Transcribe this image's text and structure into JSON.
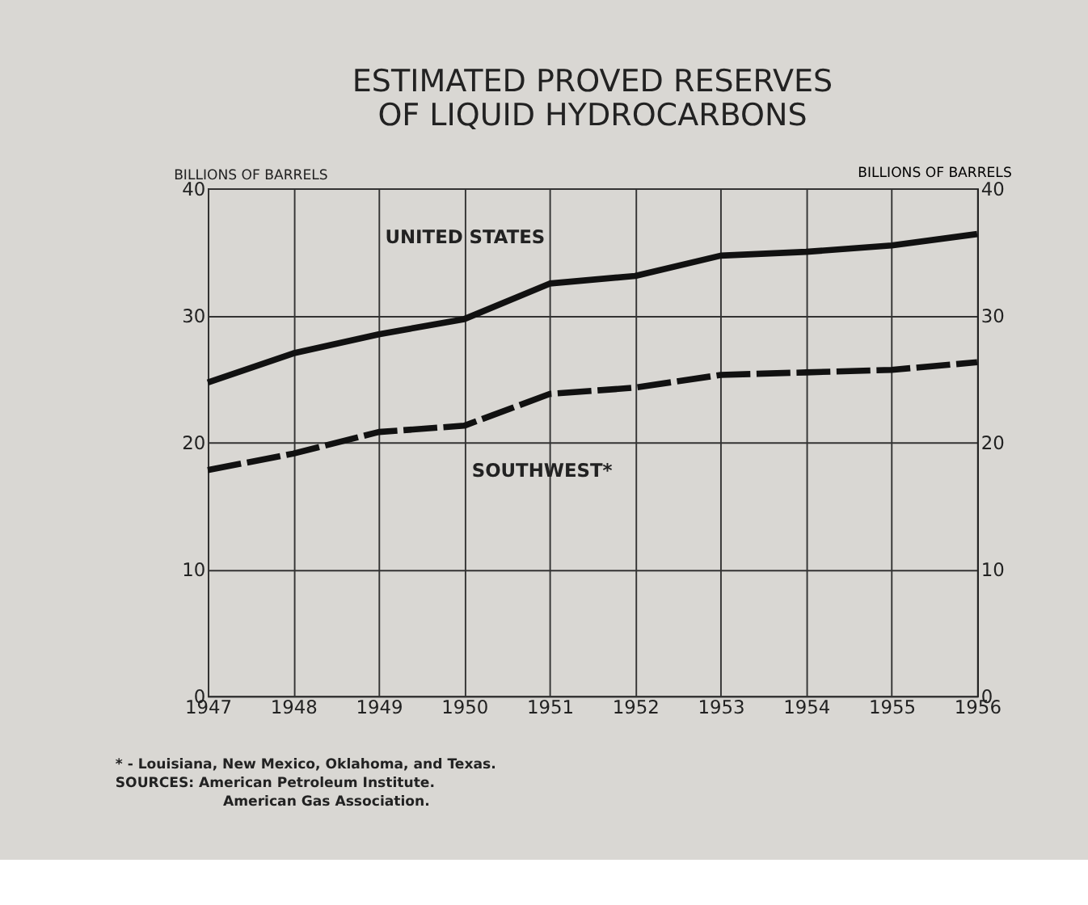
{
  "chart_data": {
    "type": "line",
    "title": "ESTIMATED PROVED RESERVES\nOF LIQUID HYDROCARBONS",
    "ylabel": "BILLIONS OF BARRELS",
    "y2label": "BILLIONS OF BARRELS",
    "x": [
      1947,
      1948,
      1949,
      1950,
      1951,
      1952,
      1953,
      1954,
      1955,
      1956
    ],
    "series": [
      {
        "name": "UNITED STATES",
        "color": "#111111",
        "line_style": "solid",
        "values": [
          24.7,
          27.0,
          28.5,
          29.7,
          32.5,
          33.1,
          34.7,
          35.0,
          35.5,
          36.4
        ]
      },
      {
        "name": "SOUTHWEST*",
        "color": "#111111",
        "line_style": "dashed",
        "values": [
          17.8,
          19.1,
          20.8,
          21.3,
          23.8,
          24.3,
          25.3,
          25.5,
          25.7,
          26.3
        ]
      }
    ],
    "xlim": [
      1947,
      1956
    ],
    "xticks": [
      1947,
      1948,
      1949,
      1950,
      1951,
      1952,
      1953,
      1954,
      1955,
      1956
    ],
    "ylim": [
      0,
      40
    ],
    "yticks": [
      0,
      10,
      20,
      30,
      40
    ],
    "y2lim": [
      0,
      40
    ],
    "y2ticks": [
      0,
      10,
      20,
      30,
      40
    ],
    "grid": true,
    "legend": false,
    "marker": "none",
    "annotations": [
      "* - Louisiana, New Mexico, Oklahoma, and Texas.",
      "SOURCES: American Petroleum Institute.",
      "American Gas Association."
    ]
  }
}
